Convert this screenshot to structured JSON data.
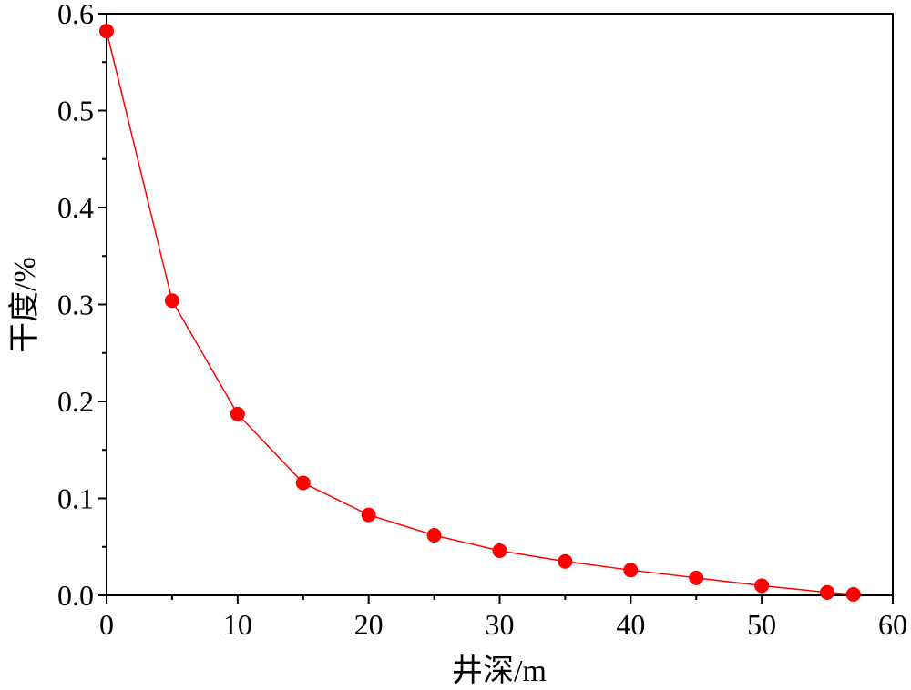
{
  "chart_data": {
    "type": "line",
    "title": "",
    "xlabel": "井深/m",
    "ylabel": "干度/%",
    "xlim": [
      0,
      60
    ],
    "ylim": [
      0,
      0.6
    ],
    "x_ticks": [
      0,
      10,
      20,
      30,
      40,
      50,
      60
    ],
    "x_tick_labels": [
      "0",
      "10",
      "20",
      "30",
      "40",
      "50",
      "60"
    ],
    "y_ticks": [
      0,
      0.1,
      0.2,
      0.3,
      0.4,
      0.5,
      0.6
    ],
    "y_tick_labels": [
      "0.0",
      "0.1",
      "0.2",
      "0.3",
      "0.4",
      "0.5",
      "0.6"
    ],
    "grid": false,
    "series": [
      {
        "color": "#ff0000",
        "marker": "circle",
        "x": [
          0,
          5,
          10,
          15,
          20,
          25,
          30,
          35,
          40,
          45,
          50,
          55,
          57
        ],
        "y": [
          0.582,
          0.304,
          0.187,
          0.116,
          0.083,
          0.062,
          0.046,
          0.035,
          0.026,
          0.018,
          0.01,
          0.003,
          0.001
        ]
      }
    ]
  }
}
